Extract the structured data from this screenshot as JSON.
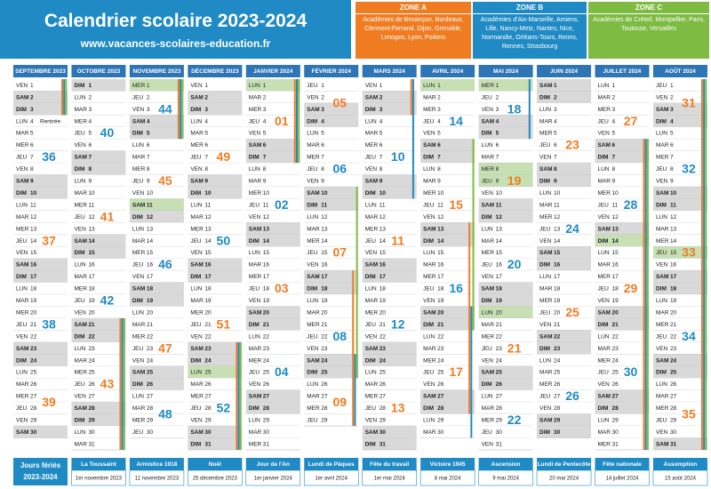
{
  "header": {
    "title": "Calendrier scolaire 2023-2024",
    "url": "www.vacances-scolaires-education.fr"
  },
  "zones": [
    {
      "name": "ZONE A",
      "color": "#f07c22",
      "text": "Académies de Besançon, Bordeaux, Clermont-Ferrand, Dijon, Grenoble, Limoges, Lyon, Poitiers"
    },
    {
      "name": "ZONE B",
      "color": "#1f8ac4",
      "text": "Académies d'Aix-Marseille, Amiens, Lille, Nancy-Metz, Nantes, Nice, Normandie, Orléans-Tours, Reims, Rennes, Strasbourg"
    },
    {
      "name": "ZONE C",
      "color": "#7dbb42",
      "text": "Académies de Créteil, Montpellier, Paris, Toulouse, Versailles"
    }
  ],
  "weekend_days": [
    "SAM",
    "DIM"
  ],
  "week_start": "LUN",
  "week_colors": [
    "#1f8ac4",
    "#f07c22"
  ],
  "months": [
    {
      "name": "SEPTEMBRE 2023",
      "weekdays": [
        "VEN",
        "SAM",
        "DIM",
        "LUN",
        "MAR",
        "MER",
        "JEU",
        "VEN",
        "SAM",
        "DIM",
        "LUN",
        "MAR",
        "MER",
        "JEU",
        "VEN",
        "SAM",
        "DIM",
        "LUN",
        "MAR",
        "MER",
        "JEU",
        "VEN",
        "SAM",
        "DIM",
        "LUN",
        "MAR",
        "MER",
        "JEU",
        "VEN",
        "SAM"
      ],
      "days": [
        1,
        2,
        3,
        4,
        5,
        6,
        7,
        8,
        9,
        10,
        11,
        12,
        13,
        14,
        15,
        16,
        17,
        18,
        19,
        20,
        21,
        22,
        23,
        24,
        25,
        26,
        27,
        28,
        29,
        30
      ],
      "weeks": [
        "36",
        "37",
        "38",
        "39"
      ],
      "holidays": [],
      "note": {
        "day": 4,
        "text": "Rentrée"
      },
      "vacations": [
        {
          "zone": 0,
          "from": 1,
          "to": 3
        },
        {
          "zone": 1,
          "from": 1,
          "to": 3
        },
        {
          "zone": 2,
          "from": 1,
          "to": 3
        }
      ]
    },
    {
      "name": "OCTOBRE 2023",
      "weekdays": [
        "DIM",
        "LUN",
        "MAR",
        "MER",
        "JEU",
        "VEN",
        "SAM",
        "DIM",
        "LUN",
        "MAR",
        "MER",
        "JEU",
        "VEN",
        "SAM",
        "DIM",
        "LUN",
        "MAR",
        "MER",
        "JEU",
        "VEN",
        "SAM",
        "DIM",
        "LUN",
        "MAR",
        "MER",
        "JEU",
        "VEN",
        "SAM",
        "DIM",
        "LUN",
        "MAR"
      ],
      "days": [
        1,
        2,
        3,
        4,
        5,
        6,
        7,
        8,
        9,
        10,
        11,
        12,
        13,
        14,
        15,
        16,
        17,
        18,
        19,
        20,
        21,
        22,
        23,
        24,
        25,
        26,
        27,
        28,
        29,
        30,
        31
      ],
      "weeks": [
        "40",
        "41",
        "42",
        "43"
      ],
      "holidays": [],
      "vacations": [
        {
          "zone": 0,
          "from": 21,
          "to": 31
        },
        {
          "zone": 1,
          "from": 21,
          "to": 31
        },
        {
          "zone": 2,
          "from": 21,
          "to": 31
        }
      ]
    },
    {
      "name": "NOVEMBRE 2023",
      "weekdays": [
        "MER",
        "JEU",
        "VEN",
        "SAM",
        "DIM",
        "LUN",
        "MAR",
        "MER",
        "JEU",
        "VEN",
        "SAM",
        "DIM",
        "LUN",
        "MAR",
        "MER",
        "JEU",
        "VEN",
        "SAM",
        "DIM",
        "LUN",
        "MAR",
        "MER",
        "JEU",
        "VEN",
        "SAM",
        "DIM",
        "LUN",
        "MAR",
        "MER",
        "JEU"
      ],
      "days": [
        1,
        2,
        3,
        4,
        5,
        6,
        7,
        8,
        9,
        10,
        11,
        12,
        13,
        14,
        15,
        16,
        17,
        18,
        19,
        20,
        21,
        22,
        23,
        24,
        25,
        26,
        27,
        28,
        29,
        30
      ],
      "weeks": [
        "44",
        "45",
        "46",
        "47",
        "48"
      ],
      "holidays": [
        1,
        11
      ],
      "vacations": [
        {
          "zone": 0,
          "from": 1,
          "to": 5
        },
        {
          "zone": 1,
          "from": 1,
          "to": 5
        },
        {
          "zone": 2,
          "from": 1,
          "to": 5
        }
      ]
    },
    {
      "name": "DÉCEMBRE 2023",
      "weekdays": [
        "VEN",
        "SAM",
        "DIM",
        "LUN",
        "MAR",
        "MER",
        "JEU",
        "VEN",
        "SAM",
        "DIM",
        "LUN",
        "MAR",
        "MER",
        "JEU",
        "VEN",
        "SAM",
        "DIM",
        "LUN",
        "MAR",
        "MER",
        "JEU",
        "VEN",
        "SAM",
        "DIM",
        "LUN",
        "MAR",
        "MER",
        "JEU",
        "VEN",
        "SAM",
        "DIM"
      ],
      "days": [
        1,
        2,
        3,
        4,
        5,
        6,
        7,
        8,
        9,
        10,
        11,
        12,
        13,
        14,
        15,
        16,
        17,
        18,
        19,
        20,
        21,
        22,
        23,
        24,
        25,
        26,
        27,
        28,
        29,
        30,
        31
      ],
      "weeks": [
        "49",
        "50",
        "51",
        "52"
      ],
      "holidays": [
        25
      ],
      "vacations": [
        {
          "zone": 0,
          "from": 23,
          "to": 31
        },
        {
          "zone": 1,
          "from": 23,
          "to": 31
        },
        {
          "zone": 2,
          "from": 23,
          "to": 31
        }
      ]
    },
    {
      "name": "JANVIER 2024",
      "weekdays": [
        "LUN",
        "MAR",
        "MER",
        "JEU",
        "VEN",
        "SAM",
        "DIM",
        "LUN",
        "MAR",
        "MER",
        "JEU",
        "VEN",
        "SAM",
        "DIM",
        "LUN",
        "MAR",
        "MER",
        "JEU",
        "VEN",
        "SAM",
        "DIM",
        "LUN",
        "MAR",
        "MER",
        "JEU",
        "VEN",
        "SAM",
        "DIM",
        "LUN",
        "MAR",
        "MER"
      ],
      "days": [
        1,
        2,
        3,
        4,
        5,
        6,
        7,
        8,
        9,
        10,
        11,
        12,
        13,
        14,
        15,
        16,
        17,
        18,
        19,
        20,
        21,
        22,
        23,
        24,
        25,
        26,
        27,
        28,
        29,
        30,
        31
      ],
      "weeks": [
        "01",
        "02",
        "03",
        "04"
      ],
      "holidays": [
        1
      ],
      "vacations": [
        {
          "zone": 0,
          "from": 1,
          "to": 7
        },
        {
          "zone": 1,
          "from": 1,
          "to": 7
        },
        {
          "zone": 2,
          "from": 1,
          "to": 7
        }
      ]
    },
    {
      "name": "FÉVRIER 2024",
      "weekdays": [
        "JEU",
        "VEN",
        "SAM",
        "DIM",
        "LUN",
        "MAR",
        "MER",
        "JEU",
        "VEN",
        "SAM",
        "DIM",
        "LUN",
        "MAR",
        "MER",
        "JEU",
        "VEN",
        "SAM",
        "DIM",
        "LUN",
        "MAR",
        "MER",
        "JEU",
        "VEN",
        "SAM",
        "DIM",
        "LUN",
        "MAR",
        "MER",
        "JEU"
      ],
      "days": [
        1,
        2,
        3,
        4,
        5,
        6,
        7,
        8,
        9,
        10,
        11,
        12,
        13,
        14,
        15,
        16,
        17,
        18,
        19,
        20,
        21,
        22,
        23,
        24,
        25,
        26,
        27,
        28,
        29
      ],
      "weeks": [
        "05",
        "06",
        "07",
        "08",
        "09"
      ],
      "holidays": [],
      "vacations": [
        {
          "zone": 0,
          "from": 17,
          "to": 29
        },
        {
          "zone": 1,
          "from": 24,
          "to": 29
        },
        {
          "zone": 2,
          "from": 10,
          "to": 25
        }
      ]
    },
    {
      "name": "MARS 2024",
      "weekdays": [
        "VEN",
        "SAM",
        "DIM",
        "LUN",
        "MAR",
        "MER",
        "JEU",
        "VEN",
        "SAM",
        "DIM",
        "LUN",
        "MAR",
        "MER",
        "JEU",
        "VEN",
        "SAM",
        "DIM",
        "LUN",
        "MAR",
        "MER",
        "JEU",
        "VEN",
        "SAM",
        "DIM",
        "LUN",
        "MAR",
        "MER",
        "JEU",
        "VEN",
        "SAM",
        "DIM"
      ],
      "days": [
        1,
        2,
        3,
        4,
        5,
        6,
        7,
        8,
        9,
        10,
        11,
        12,
        13,
        14,
        15,
        16,
        17,
        18,
        19,
        20,
        21,
        22,
        23,
        24,
        25,
        26,
        27,
        28,
        29,
        30,
        31
      ],
      "weeks": [
        "10",
        "11",
        "12",
        "13"
      ],
      "holidays": [],
      "vacations": [
        {
          "zone": 0,
          "from": 1,
          "to": 3
        },
        {
          "zone": 1,
          "from": 1,
          "to": 10
        }
      ]
    },
    {
      "name": "AVRIL 2024",
      "weekdays": [
        "LUN",
        "MAR",
        "MER",
        "JEU",
        "VEN",
        "SAM",
        "DIM",
        "LUN",
        "MAR",
        "MER",
        "JEU",
        "VEN",
        "SAM",
        "DIM",
        "LUN",
        "MAR",
        "MER",
        "JEU",
        "VEN",
        "SAM",
        "DIM",
        "LUN",
        "MAR",
        "MER",
        "JEU",
        "VEN",
        "SAM",
        "DIM",
        "LUN",
        "MAR"
      ],
      "days": [
        1,
        2,
        3,
        4,
        5,
        6,
        7,
        8,
        9,
        10,
        11,
        12,
        13,
        14,
        15,
        16,
        17,
        18,
        19,
        20,
        21,
        22,
        23,
        24,
        25,
        26,
        27,
        28,
        29,
        30
      ],
      "weeks": [
        "14",
        "15",
        "16",
        "17"
      ],
      "holidays": [
        1
      ],
      "vacations": [
        {
          "zone": 0,
          "from": 13,
          "to": 28
        },
        {
          "zone": 1,
          "from": 20,
          "to": 30
        },
        {
          "zone": 2,
          "from": 6,
          "to": 21
        }
      ]
    },
    {
      "name": "MAI 2024",
      "weekdays": [
        "MER",
        "JEU",
        "VEN",
        "SAM",
        "DIM",
        "LUN",
        "MAR",
        "MER",
        "JEU",
        "VEN",
        "SAM",
        "DIM",
        "LUN",
        "MAR",
        "MER",
        "JEU",
        "VEN",
        "SAM",
        "DIM",
        "LUN",
        "MAR",
        "MER",
        "JEU",
        "VEN",
        "SAM",
        "DIM",
        "LUN",
        "MAR",
        "MER",
        "JEU",
        "VEN"
      ],
      "days": [
        1,
        2,
        3,
        4,
        5,
        6,
        7,
        8,
        9,
        10,
        11,
        12,
        13,
        14,
        15,
        16,
        17,
        18,
        19,
        20,
        21,
        22,
        23,
        24,
        25,
        26,
        27,
        28,
        29,
        30,
        31
      ],
      "weeks": [
        "18",
        "19",
        "20",
        "21",
        "22"
      ],
      "holidays": [
        1,
        8,
        9,
        20
      ],
      "vacations": [
        {
          "zone": 1,
          "from": 1,
          "to": 5
        }
      ]
    },
    {
      "name": "JUIN 2024",
      "weekdays": [
        "SAM",
        "DIM",
        "LUN",
        "MAR",
        "MER",
        "JEU",
        "VEN",
        "SAM",
        "DIM",
        "LUN",
        "MAR",
        "MER",
        "JEU",
        "VEN",
        "SAM",
        "DIM",
        "LUN",
        "MAR",
        "MER",
        "JEU",
        "VEN",
        "SAM",
        "DIM",
        "LUN",
        "MAR",
        "MER",
        "JEU",
        "VEN",
        "SAM",
        "DIM"
      ],
      "days": [
        1,
        2,
        3,
        4,
        5,
        6,
        7,
        8,
        9,
        10,
        11,
        12,
        13,
        14,
        15,
        16,
        17,
        18,
        19,
        20,
        21,
        22,
        23,
        24,
        25,
        26,
        27,
        28,
        29,
        30
      ],
      "weeks": [
        "23",
        "24",
        "25",
        "26"
      ],
      "holidays": [],
      "vacations": []
    },
    {
      "name": "JUILLET 2024",
      "weekdays": [
        "LUN",
        "MAR",
        "MER",
        "JEU",
        "VEN",
        "SAM",
        "DIM",
        "LUN",
        "MAR",
        "MER",
        "JEU",
        "VEN",
        "SAM",
        "DIM",
        "LUN",
        "MAR",
        "MER",
        "JEU",
        "VEN",
        "SAM",
        "DIM",
        "LUN",
        "MAR",
        "MER",
        "JEU",
        "VEN",
        "SAM",
        "DIM",
        "LUN",
        "MAR",
        "MER"
      ],
      "days": [
        1,
        2,
        3,
        4,
        5,
        6,
        7,
        8,
        9,
        10,
        11,
        12,
        13,
        14,
        15,
        16,
        17,
        18,
        19,
        20,
        21,
        22,
        23,
        24,
        25,
        26,
        27,
        28,
        29,
        30,
        31
      ],
      "weeks": [
        "27",
        "28",
        "29",
        "30"
      ],
      "holidays": [
        14
      ],
      "vacations": [
        {
          "zone": 0,
          "from": 6,
          "to": 31
        },
        {
          "zone": 1,
          "from": 6,
          "to": 31
        },
        {
          "zone": 2,
          "from": 6,
          "to": 31
        }
      ]
    },
    {
      "name": "AOÛT 2024",
      "weekdays": [
        "JEU",
        "VEN",
        "SAM",
        "DIM",
        "LUN",
        "MAR",
        "MER",
        "JEU",
        "VEN",
        "SAM",
        "DIM",
        "LUN",
        "MAR",
        "MER",
        "JEU",
        "VEN",
        "SAM",
        "DIM",
        "LUN",
        "MAR",
        "MER",
        "JEU",
        "VEN",
        "SAM",
        "DIM",
        "LUN",
        "MAR",
        "MER",
        "JEU",
        "VEN",
        "SAM"
      ],
      "days": [
        1,
        2,
        3,
        4,
        5,
        6,
        7,
        8,
        9,
        10,
        11,
        12,
        13,
        14,
        15,
        16,
        17,
        18,
        19,
        20,
        21,
        22,
        23,
        24,
        25,
        26,
        27,
        28,
        29,
        30,
        31
      ],
      "weeks": [
        "31",
        "32",
        "33",
        "34",
        "35"
      ],
      "holidays": [
        15
      ],
      "vacations": [
        {
          "zone": 0,
          "from": 1,
          "to": 31
        },
        {
          "zone": 1,
          "from": 1,
          "to": 31
        },
        {
          "zone": 2,
          "from": 1,
          "to": 31
        }
      ]
    }
  ],
  "footer": {
    "title": "Jours fériés",
    "year": "2023-2024",
    "items": [
      {
        "name": "La Toussaint",
        "date": "1er novembre 2023"
      },
      {
        "name": "Armistice 1918",
        "date": "11 novembre 2023"
      },
      {
        "name": "Noël",
        "date": "25 décembre 2023"
      },
      {
        "name": "Jour de l'An",
        "date": "1er janvier 2024"
      },
      {
        "name": "Lundi de Pâques",
        "date": "1er avril 2024"
      },
      {
        "name": "Fête du travail",
        "date": "1er mai 2024"
      },
      {
        "name": "Victoire 1945",
        "date": "8 mai 2024"
      },
      {
        "name": "Ascension",
        "date": "9 mai 2024"
      },
      {
        "name": "Lundi de Pentecôte",
        "date": "20 mai 2024"
      },
      {
        "name": "Fête nationale",
        "date": "14 juillet 2024"
      },
      {
        "name": "Assomption",
        "date": "15 août 2024"
      }
    ]
  }
}
